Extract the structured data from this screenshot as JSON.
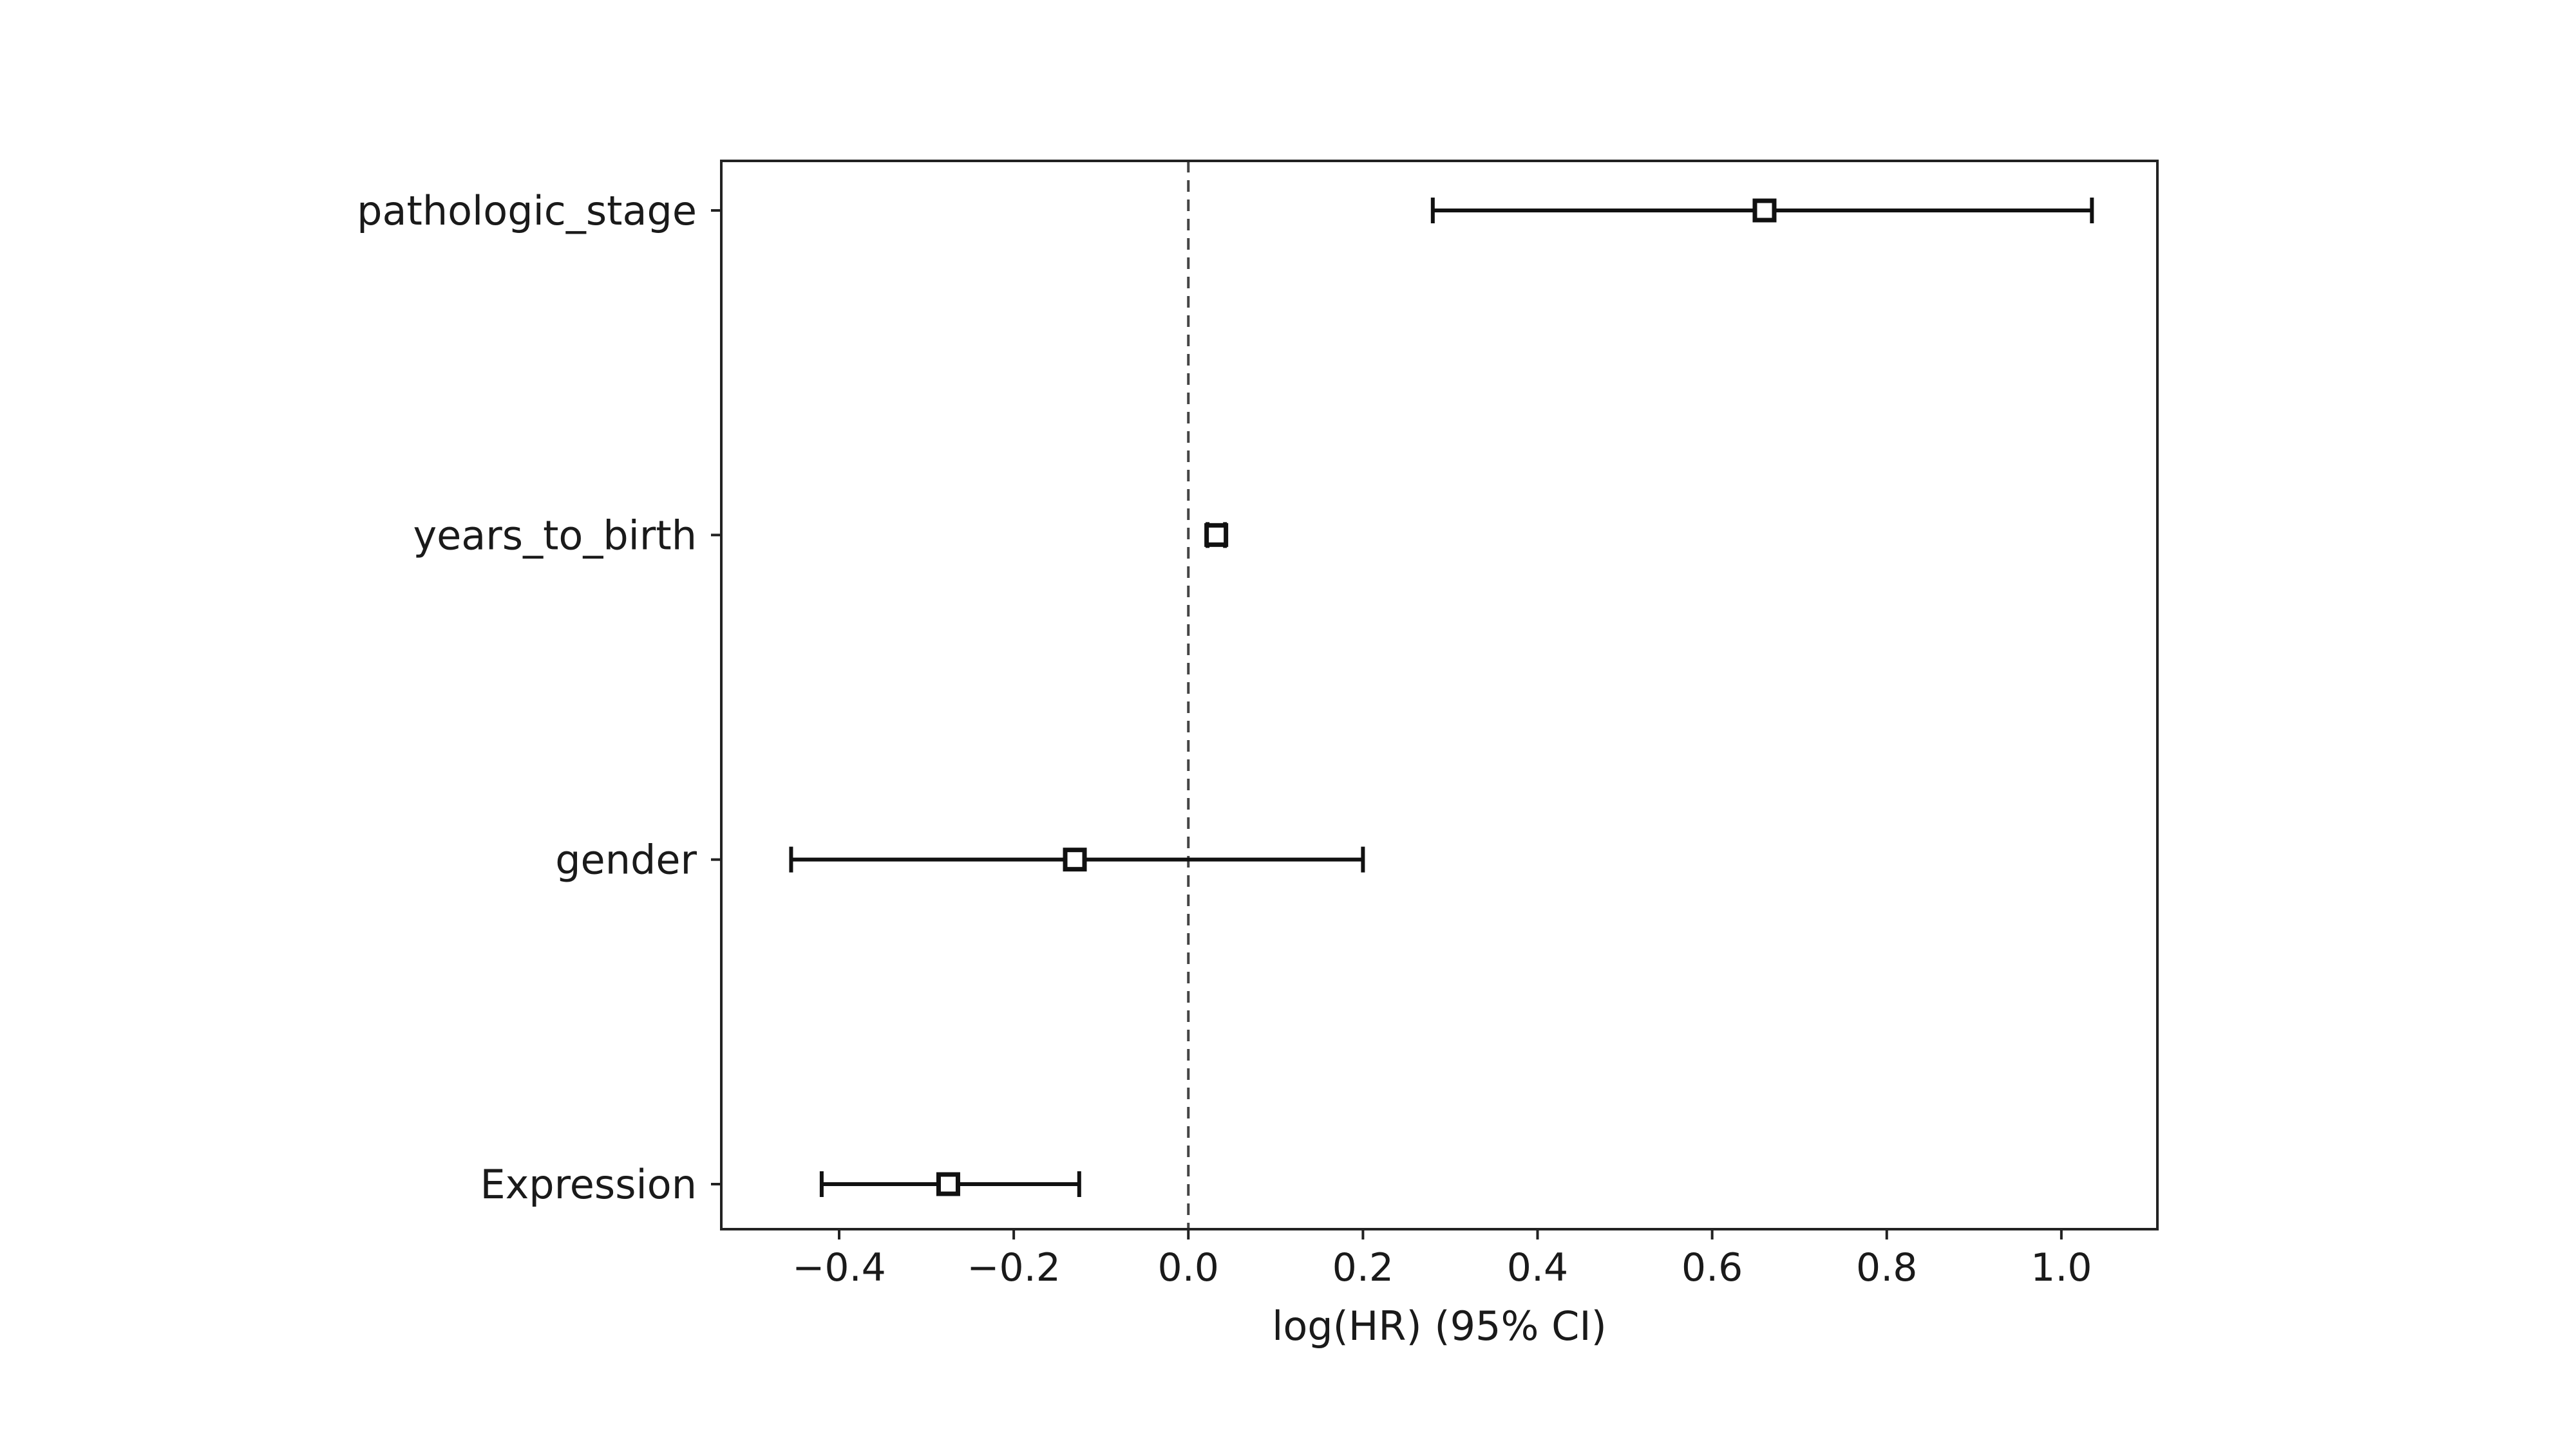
{
  "chart_data": {
    "type": "forest",
    "title": "",
    "xlabel": "log(HR) (95% CI)",
    "ylabel": "",
    "xlim": [
      -0.535,
      1.11
    ],
    "xticks": [
      -0.4,
      -0.2,
      0.0,
      0.2,
      0.4,
      0.6,
      0.8,
      1.0
    ],
    "xtick_labels": [
      "−0.4",
      "−0.2",
      "0.0",
      "0.2",
      "0.4",
      "0.6",
      "0.8",
      "1.0"
    ],
    "reference_line_x": 0.0,
    "grid": false,
    "legend": "none",
    "categories": [
      "pathologic_stage",
      "years_to_birth",
      "gender",
      "Expression"
    ],
    "estimates": [
      0.66,
      0.032,
      -0.13,
      -0.275
    ],
    "ci_lower": [
      0.28,
      0.022,
      -0.455,
      -0.42
    ],
    "ci_upper": [
      1.035,
      0.042,
      0.2,
      -0.125
    ]
  }
}
